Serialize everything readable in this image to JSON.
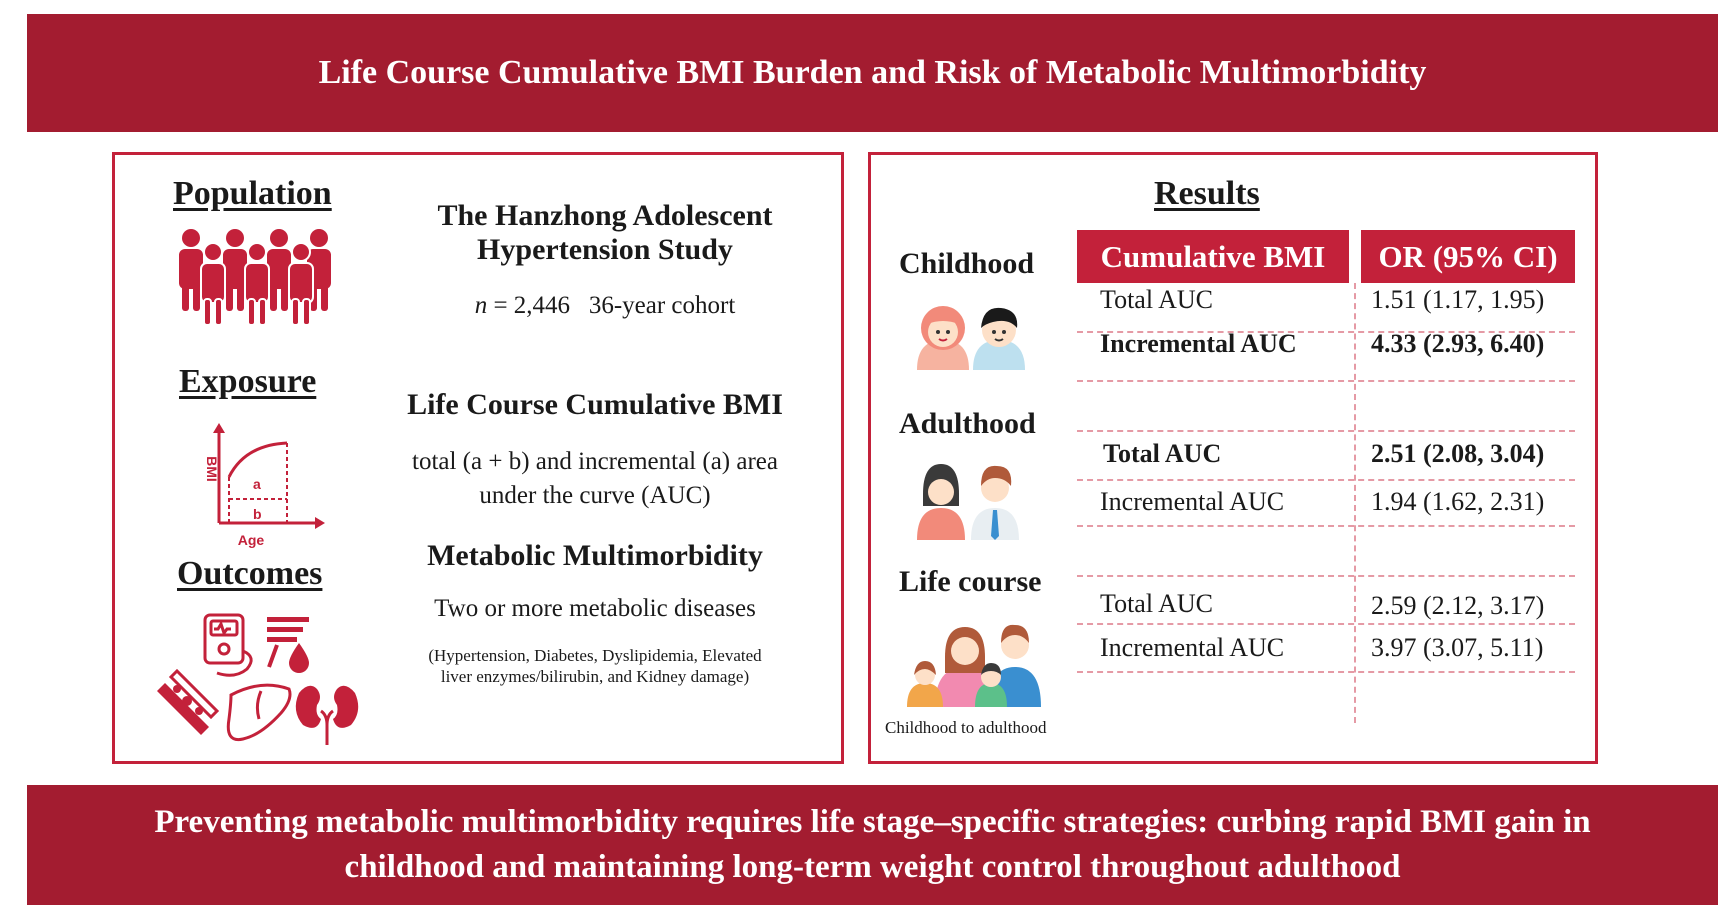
{
  "title": "Life Course Cumulative BMI Burden and Risk of Metabolic Multimorbidity",
  "left": {
    "population": {
      "label": "Population",
      "heading_line1": "The Hanzhong Adolescent",
      "heading_line2": "Hypertension Study",
      "n_italic": "n",
      "n_value": "= 2,446",
      "cohort": "36-year cohort",
      "icon": "people-group-icon"
    },
    "exposure": {
      "label": "Exposure",
      "heading": "Life Course Cumulative BMI",
      "desc_line1": "total (a + b) and incremental (a) area",
      "desc_line2": "under the curve (AUC)",
      "chart_y": "BMI",
      "chart_x": "Age",
      "chart_a": "a",
      "chart_b": "b"
    },
    "outcomes": {
      "label": "Outcomes",
      "heading": "Metabolic Multimorbidity",
      "desc": "Two or more metabolic diseases",
      "detail_line1": "(Hypertension, Diabetes, Dyslipidemia, Elevated",
      "detail_line2": "liver enzymes/bilirubin, and Kidney damage)"
    }
  },
  "right": {
    "title": "Results",
    "col1": "Cumulative BMI",
    "col2": "OR (95% CI)",
    "stages": [
      {
        "label": "Childhood",
        "icon": "children-icon"
      },
      {
        "label": "Adulthood",
        "icon": "adults-icon"
      },
      {
        "label": "Life course",
        "icon": "family-icon",
        "caption": "Childhood to adulthood"
      }
    ],
    "rows": [
      {
        "measure": "Total AUC",
        "or": "1.51 (1.17, 1.95)"
      },
      {
        "measure": "Incremental AUC",
        "or": "4.33 (2.93, 6.40)"
      },
      {
        "measure": "Total AUC",
        "or": "2.51 (2.08, 3.04)"
      },
      {
        "measure": "Incremental AUC",
        "or": "1.94 (1.62, 2.31)"
      },
      {
        "measure": "Total AUC",
        "or": "2.59 (2.12, 3.17)"
      },
      {
        "measure": "Incremental AUC",
        "or": "3.97 (3.07, 5.11)"
      }
    ]
  },
  "conclusion_line1": "Preventing metabolic multimorbidity requires life stage–specific strategies: curbing rapid BMI gain in",
  "conclusion_line2": "childhood and maintaining long-term weight control throughout adulthood",
  "colors": {
    "brand_red": "#a31c30",
    "accent_red": "#c3213a"
  }
}
